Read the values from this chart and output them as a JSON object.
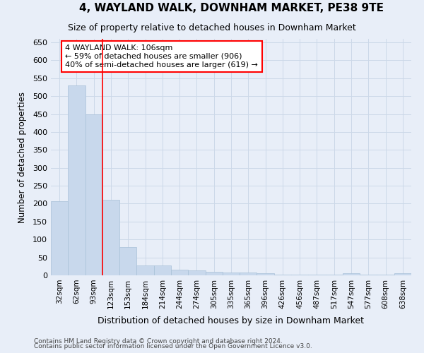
{
  "title": "4, WAYLAND WALK, DOWNHAM MARKET, PE38 9TE",
  "subtitle": "Size of property relative to detached houses in Downham Market",
  "xlabel": "Distribution of detached houses by size in Downham Market",
  "ylabel": "Number of detached properties",
  "footer_line1": "Contains HM Land Registry data © Crown copyright and database right 2024.",
  "footer_line2": "Contains public sector information licensed under the Open Government Licence v3.0.",
  "categories": [
    "32sqm",
    "62sqm",
    "93sqm",
    "123sqm",
    "153sqm",
    "184sqm",
    "214sqm",
    "244sqm",
    "274sqm",
    "305sqm",
    "335sqm",
    "365sqm",
    "396sqm",
    "426sqm",
    "456sqm",
    "487sqm",
    "517sqm",
    "547sqm",
    "577sqm",
    "608sqm",
    "638sqm"
  ],
  "values": [
    207,
    530,
    450,
    210,
    78,
    27,
    27,
    15,
    13,
    10,
    7,
    7,
    5,
    1,
    1,
    1,
    1,
    5,
    1,
    1,
    5
  ],
  "bar_color": "#c8d8ec",
  "bar_edge_color": "#a8c0d8",
  "grid_color": "#ccd8e8",
  "background_color": "#e8eef8",
  "red_line_x": 2.5,
  "annotation_text": "4 WAYLAND WALK: 106sqm\n← 59% of detached houses are smaller (906)\n40% of semi-detached houses are larger (619) →",
  "annotation_box_color": "white",
  "annotation_border_color": "red",
  "ylim": [
    0,
    660
  ],
  "yticks": [
    0,
    50,
    100,
    150,
    200,
    250,
    300,
    350,
    400,
    450,
    500,
    550,
    600,
    650
  ]
}
